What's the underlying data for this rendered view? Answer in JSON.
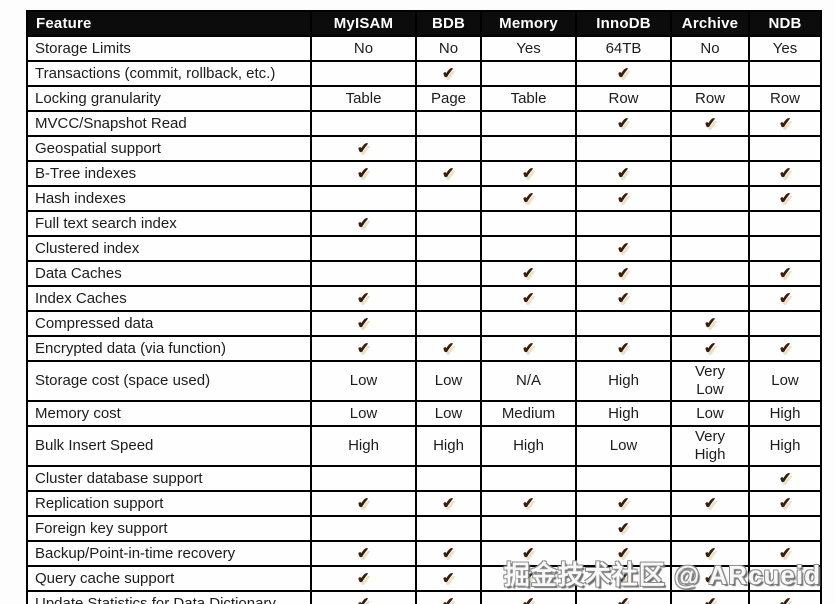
{
  "watermark": "掘金技术社区 @ ARcueid",
  "colors": {
    "header_bg": "#0c0c0c",
    "header_text": "#ffffff",
    "border": "#010101",
    "body_text": "#1c1c1c",
    "check": "#3b1d0b",
    "check_shadow": "#e9e1c8",
    "page_bg": "#fdfdfd"
  },
  "table": {
    "check_glyph": "✔",
    "columns": [
      "Feature",
      "MyISAM",
      "BDB",
      "Memory",
      "InnoDB",
      "Archive",
      "NDB"
    ],
    "rows": [
      {
        "feature": "Storage Limits",
        "values": [
          "No",
          "No",
          "Yes",
          "64TB",
          "No",
          "Yes"
        ]
      },
      {
        "feature": "Transactions (commit, rollback, etc.)",
        "values": [
          "",
          "check",
          "",
          "check",
          "",
          ""
        ]
      },
      {
        "feature": "Locking granularity",
        "values": [
          "Table",
          "Page",
          "Table",
          "Row",
          "Row",
          "Row"
        ]
      },
      {
        "feature": "MVCC/Snapshot Read",
        "values": [
          "",
          "",
          "",
          "check",
          "check",
          "check"
        ]
      },
      {
        "feature": "Geospatial support",
        "values": [
          "check",
          "",
          "",
          "",
          "",
          ""
        ]
      },
      {
        "feature": "B-Tree indexes",
        "values": [
          "check",
          "check",
          "check",
          "check",
          "",
          "check"
        ]
      },
      {
        "feature": "Hash indexes",
        "values": [
          "",
          "",
          "check",
          "check",
          "",
          "check"
        ]
      },
      {
        "feature": "Full text search index",
        "values": [
          "check",
          "",
          "",
          "",
          "",
          ""
        ]
      },
      {
        "feature": "Clustered index",
        "values": [
          "",
          "",
          "",
          "check",
          "",
          ""
        ]
      },
      {
        "feature": "Data Caches",
        "values": [
          "",
          "",
          "check",
          "check",
          "",
          "check"
        ]
      },
      {
        "feature": "Index Caches",
        "values": [
          "check",
          "",
          "check",
          "check",
          "",
          "check"
        ]
      },
      {
        "feature": "Compressed data",
        "values": [
          "check",
          "",
          "",
          "",
          "check",
          ""
        ]
      },
      {
        "feature": "Encrypted data (via function)",
        "values": [
          "check",
          "check",
          "check",
          "check",
          "check",
          "check"
        ]
      },
      {
        "feature": "Storage cost (space used)",
        "values": [
          "Low",
          "Low",
          "N/A",
          "High",
          "Very\nLow",
          "Low"
        ]
      },
      {
        "feature": "Memory cost",
        "values": [
          "Low",
          "Low",
          "Medium",
          "High",
          "Low",
          "High"
        ]
      },
      {
        "feature": "Bulk Insert Speed",
        "values": [
          "High",
          "High",
          "High",
          "Low",
          "Very\nHigh",
          "High"
        ]
      },
      {
        "feature": "Cluster database support",
        "values": [
          "",
          "",
          "",
          "",
          "",
          "check"
        ]
      },
      {
        "feature": "Replication support",
        "values": [
          "check",
          "check",
          "check",
          "check",
          "check",
          "check"
        ]
      },
      {
        "feature": "Foreign key support",
        "values": [
          "",
          "",
          "",
          "check",
          "",
          ""
        ]
      },
      {
        "feature": "Backup/Point-in-time recovery",
        "values": [
          "check",
          "check",
          "check",
          "check",
          "check",
          "check"
        ]
      },
      {
        "feature": "Query cache support",
        "values": [
          "check",
          "check",
          "check",
          "check",
          "check",
          "check"
        ]
      },
      {
        "feature": "Update Statistics for Data Dictionary",
        "values": [
          "check",
          "check",
          "check",
          "check",
          "check",
          "check"
        ]
      }
    ]
  }
}
